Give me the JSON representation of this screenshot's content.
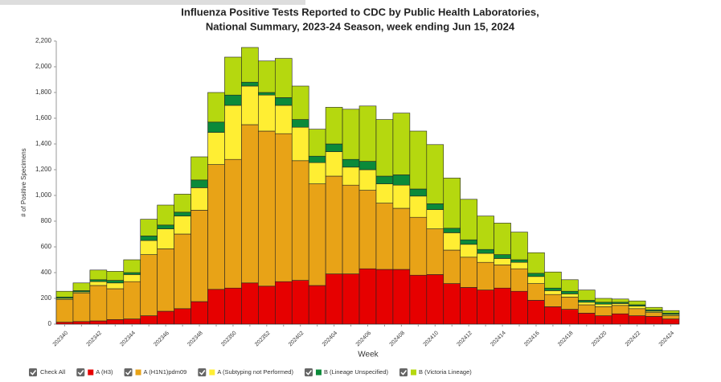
{
  "chart_data": {
    "type": "stacked_bar",
    "title": [
      "Influenza Positive Tests Reported to CDC by Public Health Laboratories,",
      "National Summary, 2023-24 Season, week ending Jun 15, 2024"
    ],
    "x_label": "Week",
    "y_label": "# of Positive Specimens",
    "check_all": "Check All",
    "categories": [
      "202340",
      null,
      "202342",
      null,
      "202344",
      null,
      "202346",
      null,
      "202348",
      null,
      "202350",
      null,
      "202352",
      null,
      "202402",
      null,
      "202404",
      null,
      "202406",
      null,
      "202408",
      null,
      "202410",
      null,
      "202412",
      null,
      "202414",
      null,
      "202416",
      null,
      "202418",
      null,
      "202420",
      null,
      "202422",
      null,
      "202424"
    ],
    "ylim": [
      0,
      2200
    ],
    "yticks": [
      0,
      200,
      400,
      600,
      800,
      {
        "value": 1000,
        "label": "1,000"
      },
      {
        "value": 1200,
        "label": "1,200"
      },
      {
        "value": 1400,
        "label": "1,400"
      },
      {
        "value": 1600,
        "label": "1,600"
      },
      {
        "value": 1800,
        "label": "1,800"
      },
      {
        "value": 2000,
        "label": "2,000"
      },
      {
        "value": 2200,
        "label": "2,200"
      }
    ],
    "series": [
      {
        "name": "A (H3)",
        "color": "#e60000",
        "values": [
          15,
          20,
          25,
          35,
          40,
          65,
          100,
          120,
          175,
          270,
          280,
          320,
          295,
          330,
          340,
          300,
          390,
          390,
          430,
          425,
          425,
          380,
          385,
          315,
          285,
          265,
          280,
          255,
          185,
          135,
          115,
          85,
          65,
          80,
          65,
          60,
          40
        ]
      },
      {
        "name": "A (H1N1)pdm09",
        "color": "#e8a317",
        "values": [
          175,
          220,
          275,
          240,
          290,
          475,
          485,
          580,
          710,
          970,
          1000,
          1230,
          1205,
          1150,
          930,
          790,
          760,
          690,
          610,
          515,
          475,
          450,
          355,
          260,
          235,
          215,
          180,
          175,
          130,
          95,
          95,
          65,
          70,
          65,
          55,
          30,
          25
        ]
      },
      {
        "name": "A (Subtyping not Performed)",
        "color": "#ffee33",
        "values": [
          10,
          10,
          30,
          45,
          55,
          110,
          155,
          140,
          175,
          250,
          420,
          300,
          280,
          220,
          260,
          165,
          190,
          140,
          160,
          150,
          180,
          165,
          150,
          135,
          100,
          70,
          50,
          50,
          55,
          30,
          25,
          20,
          20,
          15,
          20,
          10,
          10
        ]
      },
      {
        "name": "B (Lineage Unspecified)",
        "color": "#0b8a3a",
        "values": [
          10,
          10,
          15,
          20,
          15,
          35,
          30,
          30,
          60,
          80,
          80,
          30,
          20,
          60,
          60,
          50,
          60,
          60,
          65,
          60,
          80,
          55,
          45,
          35,
          35,
          30,
          30,
          20,
          25,
          20,
          20,
          15,
          15,
          10,
          10,
          10,
          10
        ]
      },
      {
        "name": "B (Victoria Lineage)",
        "color": "#b5d80f",
        "values": [
          45,
          60,
          75,
          70,
          100,
          130,
          155,
          140,
          180,
          230,
          295,
          270,
          245,
          305,
          260,
          210,
          285,
          390,
          430,
          440,
          480,
          450,
          460,
          390,
          315,
          260,
          245,
          215,
          160,
          125,
          90,
          80,
          30,
          25,
          30,
          20,
          20
        ]
      }
    ]
  }
}
